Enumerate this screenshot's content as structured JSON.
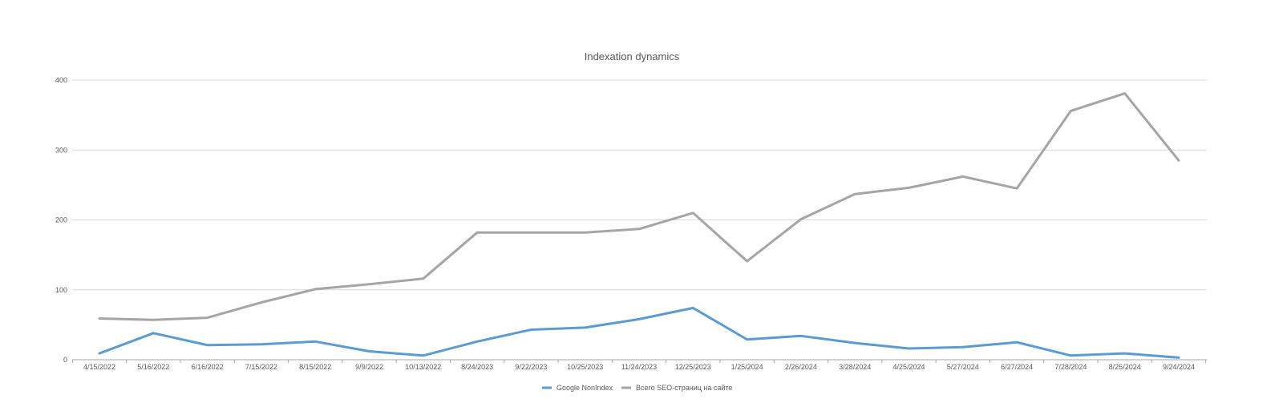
{
  "chart_data": {
    "type": "line",
    "title": "Indexation dynamics",
    "xlabel": "",
    "ylabel": "",
    "ylim": [
      0,
      400
    ],
    "yticks": [
      0,
      100,
      200,
      300,
      400
    ],
    "grid": true,
    "legend_position": "bottom",
    "categories": [
      "4/15/2022",
      "5/16/2022",
      "6/16/2022",
      "7/15/2022",
      "8/15/2022",
      "9/9/2022",
      "10/13/2022",
      "8/24/2023",
      "9/22/2023",
      "10/25/2023",
      "11/24/2023",
      "12/25/2023",
      "1/25/2024",
      "2/26/2024",
      "3/28/2024",
      "4/25/2024",
      "5/27/2024",
      "6/27/2024",
      "7/28/2024",
      "8/26/2024",
      "9/24/2024"
    ],
    "series": [
      {
        "name": "Google NonIndex",
        "color": "#5b9bd5",
        "values": [
          9,
          38,
          21,
          22,
          26,
          12,
          6,
          26,
          43,
          46,
          58,
          74,
          29,
          34,
          24,
          16,
          18,
          25,
          6,
          9,
          3
        ]
      },
      {
        "name": "Всего SEO-страниц на сайте",
        "color": "#a5a5a5",
        "values": [
          59,
          57,
          60,
          82,
          101,
          108,
          116,
          182,
          182,
          182,
          187,
          210,
          141,
          201,
          237,
          246,
          262,
          245,
          356,
          381,
          285
        ]
      }
    ]
  }
}
